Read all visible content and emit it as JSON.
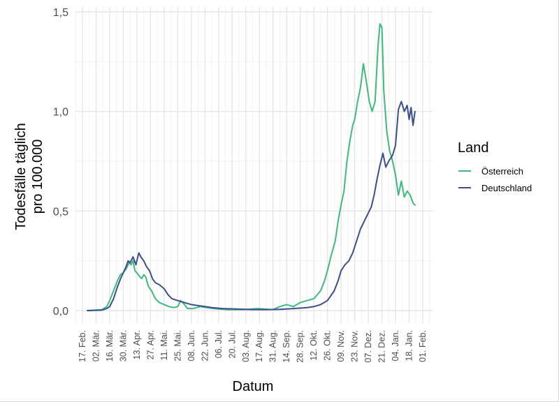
{
  "chart_data": {
    "type": "line",
    "title": "",
    "xlabel": "Datum",
    "ylabel": [
      "Todesfälle täglich",
      "pro 100.000"
    ],
    "ylim": [
      0,
      1.5
    ],
    "y_ticks": [
      0,
      0.5,
      1.0,
      1.5
    ],
    "y_tick_labels": [
      "0,0",
      "0,5",
      "1,0",
      "1,5"
    ],
    "x_range": [
      "2020-02-10",
      "2021-02-05"
    ],
    "x_ticks": [
      "2020-02-17",
      "2020-03-02",
      "2020-03-16",
      "2020-03-30",
      "2020-04-13",
      "2020-04-27",
      "2020-05-11",
      "2020-05-25",
      "2020-06-08",
      "2020-06-22",
      "2020-07-06",
      "2020-07-20",
      "2020-08-03",
      "2020-08-17",
      "2020-08-31",
      "2020-09-14",
      "2020-09-28",
      "2020-10-12",
      "2020-10-26",
      "2020-11-09",
      "2020-11-23",
      "2020-12-07",
      "2020-12-21",
      "2021-01-04",
      "2021-01-18",
      "2021-02-01"
    ],
    "x_tick_labels": [
      "17. Feb.",
      "02. Mär.",
      "16. Mär.",
      "30. Mär.",
      "13. Apr.",
      "27. Apr.",
      "11. Mai.",
      "25. Mai.",
      "08. Jun.",
      "22. Jun.",
      "06. Jul.",
      "20. Jul.",
      "03. Aug.",
      "17. Aug.",
      "31. Aug.",
      "14. Sep.",
      "28. Sep.",
      "12. Okt.",
      "26. Okt.",
      "09. Nov.",
      "23. Nov.",
      "07. Dez.",
      "21. Dez.",
      "04. Jan.",
      "18. Jan.",
      "01. Feb."
    ],
    "grid": true,
    "legend": {
      "title": "Land",
      "placement": "right"
    },
    "series": [
      {
        "name": "Österreich",
        "color": "#3dba7e",
        "points": [
          [
            "2020-02-22",
            0
          ],
          [
            "2020-03-08",
            0.005
          ],
          [
            "2020-03-13",
            0.02
          ],
          [
            "2020-03-16",
            0.05
          ],
          [
            "2020-03-20",
            0.1
          ],
          [
            "2020-03-24",
            0.15
          ],
          [
            "2020-03-27",
            0.18
          ],
          [
            "2020-03-30",
            0.19
          ],
          [
            "2020-04-02",
            0.21
          ],
          [
            "2020-04-05",
            0.24
          ],
          [
            "2020-04-07",
            0.23
          ],
          [
            "2020-04-09",
            0.25
          ],
          [
            "2020-04-11",
            0.2
          ],
          [
            "2020-04-13",
            0.19
          ],
          [
            "2020-04-16",
            0.17
          ],
          [
            "2020-04-18",
            0.16
          ],
          [
            "2020-04-20",
            0.18
          ],
          [
            "2020-04-22",
            0.17
          ],
          [
            "2020-04-25",
            0.12
          ],
          [
            "2020-04-28",
            0.1
          ],
          [
            "2020-05-02",
            0.06
          ],
          [
            "2020-05-06",
            0.04
          ],
          [
            "2020-05-11",
            0.03
          ],
          [
            "2020-05-16",
            0.02
          ],
          [
            "2020-05-21",
            0.015
          ],
          [
            "2020-05-25",
            0.02
          ],
          [
            "2020-05-28",
            0.05
          ],
          [
            "2020-06-01",
            0.03
          ],
          [
            "2020-06-04",
            0.01
          ],
          [
            "2020-06-10",
            0.01
          ],
          [
            "2020-06-17",
            0.02
          ],
          [
            "2020-06-24",
            0.015
          ],
          [
            "2020-07-01",
            0.01
          ],
          [
            "2020-07-15",
            0.005
          ],
          [
            "2020-07-31",
            0.005
          ],
          [
            "2020-08-15",
            0.01
          ],
          [
            "2020-08-31",
            0.005
          ],
          [
            "2020-09-07",
            0.02
          ],
          [
            "2020-09-14",
            0.03
          ],
          [
            "2020-09-21",
            0.02
          ],
          [
            "2020-09-28",
            0.04
          ],
          [
            "2020-10-05",
            0.05
          ],
          [
            "2020-10-12",
            0.06
          ],
          [
            "2020-10-19",
            0.1
          ],
          [
            "2020-10-23",
            0.15
          ],
          [
            "2020-10-26",
            0.2
          ],
          [
            "2020-10-30",
            0.28
          ],
          [
            "2020-11-03",
            0.35
          ],
          [
            "2020-11-06",
            0.45
          ],
          [
            "2020-11-09",
            0.53
          ],
          [
            "2020-11-12",
            0.6
          ],
          [
            "2020-11-15",
            0.75
          ],
          [
            "2020-11-18",
            0.85
          ],
          [
            "2020-11-21",
            0.93
          ],
          [
            "2020-11-23",
            0.96
          ],
          [
            "2020-11-26",
            1.05
          ],
          [
            "2020-11-29",
            1.12
          ],
          [
            "2020-12-02",
            1.24
          ],
          [
            "2020-12-05",
            1.15
          ],
          [
            "2020-12-08",
            1.05
          ],
          [
            "2020-12-11",
            1.0
          ],
          [
            "2020-12-14",
            1.05
          ],
          [
            "2020-12-17",
            1.33
          ],
          [
            "2020-12-19",
            1.44
          ],
          [
            "2020-12-21",
            1.42
          ],
          [
            "2020-12-23",
            1.1
          ],
          [
            "2020-12-26",
            0.9
          ],
          [
            "2020-12-29",
            0.8
          ],
          [
            "2021-01-01",
            0.75
          ],
          [
            "2021-01-04",
            0.68
          ],
          [
            "2021-01-07",
            0.58
          ],
          [
            "2021-01-10",
            0.65
          ],
          [
            "2021-01-13",
            0.57
          ],
          [
            "2021-01-16",
            0.6
          ],
          [
            "2021-01-19",
            0.58
          ],
          [
            "2021-01-22",
            0.54
          ],
          [
            "2021-01-24",
            0.53
          ]
        ]
      },
      {
        "name": "Deutschland",
        "color": "#3b4f8c",
        "points": [
          [
            "2020-02-22",
            0
          ],
          [
            "2020-03-08",
            0.002
          ],
          [
            "2020-03-13",
            0.01
          ],
          [
            "2020-03-16",
            0.02
          ],
          [
            "2020-03-20",
            0.06
          ],
          [
            "2020-03-24",
            0.12
          ],
          [
            "2020-03-28",
            0.17
          ],
          [
            "2020-04-01",
            0.21
          ],
          [
            "2020-04-04",
            0.25
          ],
          [
            "2020-04-06",
            0.24
          ],
          [
            "2020-04-09",
            0.27
          ],
          [
            "2020-04-12",
            0.23
          ],
          [
            "2020-04-15",
            0.29
          ],
          [
            "2020-04-17",
            0.27
          ],
          [
            "2020-04-20",
            0.25
          ],
          [
            "2020-04-23",
            0.22
          ],
          [
            "2020-04-26",
            0.2
          ],
          [
            "2020-04-29",
            0.16
          ],
          [
            "2020-05-02",
            0.14
          ],
          [
            "2020-05-06",
            0.13
          ],
          [
            "2020-05-11",
            0.11
          ],
          [
            "2020-05-15",
            0.08
          ],
          [
            "2020-05-19",
            0.06
          ],
          [
            "2020-05-25",
            0.05
          ],
          [
            "2020-06-01",
            0.04
          ],
          [
            "2020-06-08",
            0.03
          ],
          [
            "2020-06-15",
            0.025
          ],
          [
            "2020-06-22",
            0.02
          ],
          [
            "2020-06-29",
            0.015
          ],
          [
            "2020-07-10",
            0.01
          ],
          [
            "2020-07-25",
            0.008
          ],
          [
            "2020-08-10",
            0.005
          ],
          [
            "2020-08-25",
            0.005
          ],
          [
            "2020-09-07",
            0.006
          ],
          [
            "2020-09-21",
            0.01
          ],
          [
            "2020-10-05",
            0.015
          ],
          [
            "2020-10-12",
            0.02
          ],
          [
            "2020-10-19",
            0.03
          ],
          [
            "2020-10-26",
            0.05
          ],
          [
            "2020-11-02",
            0.1
          ],
          [
            "2020-11-06",
            0.15
          ],
          [
            "2020-11-09",
            0.2
          ],
          [
            "2020-11-13",
            0.23
          ],
          [
            "2020-11-17",
            0.25
          ],
          [
            "2020-11-21",
            0.29
          ],
          [
            "2020-11-25",
            0.35
          ],
          [
            "2020-11-29",
            0.41
          ],
          [
            "2020-12-03",
            0.45
          ],
          [
            "2020-12-07",
            0.49
          ],
          [
            "2020-12-10",
            0.52
          ],
          [
            "2020-12-13",
            0.58
          ],
          [
            "2020-12-16",
            0.66
          ],
          [
            "2020-12-19",
            0.73
          ],
          [
            "2020-12-22",
            0.79
          ],
          [
            "2020-12-25",
            0.72
          ],
          [
            "2020-12-28",
            0.75
          ],
          [
            "2021-01-01",
            0.78
          ],
          [
            "2021-01-04",
            0.83
          ],
          [
            "2021-01-07",
            1.01
          ],
          [
            "2021-01-10",
            1.05
          ],
          [
            "2021-01-13",
            1.0
          ],
          [
            "2021-01-16",
            1.03
          ],
          [
            "2021-01-18",
            0.96
          ],
          [
            "2021-01-20",
            1.02
          ],
          [
            "2021-01-22",
            0.93
          ],
          [
            "2021-01-24",
            1.0
          ]
        ]
      }
    ]
  }
}
